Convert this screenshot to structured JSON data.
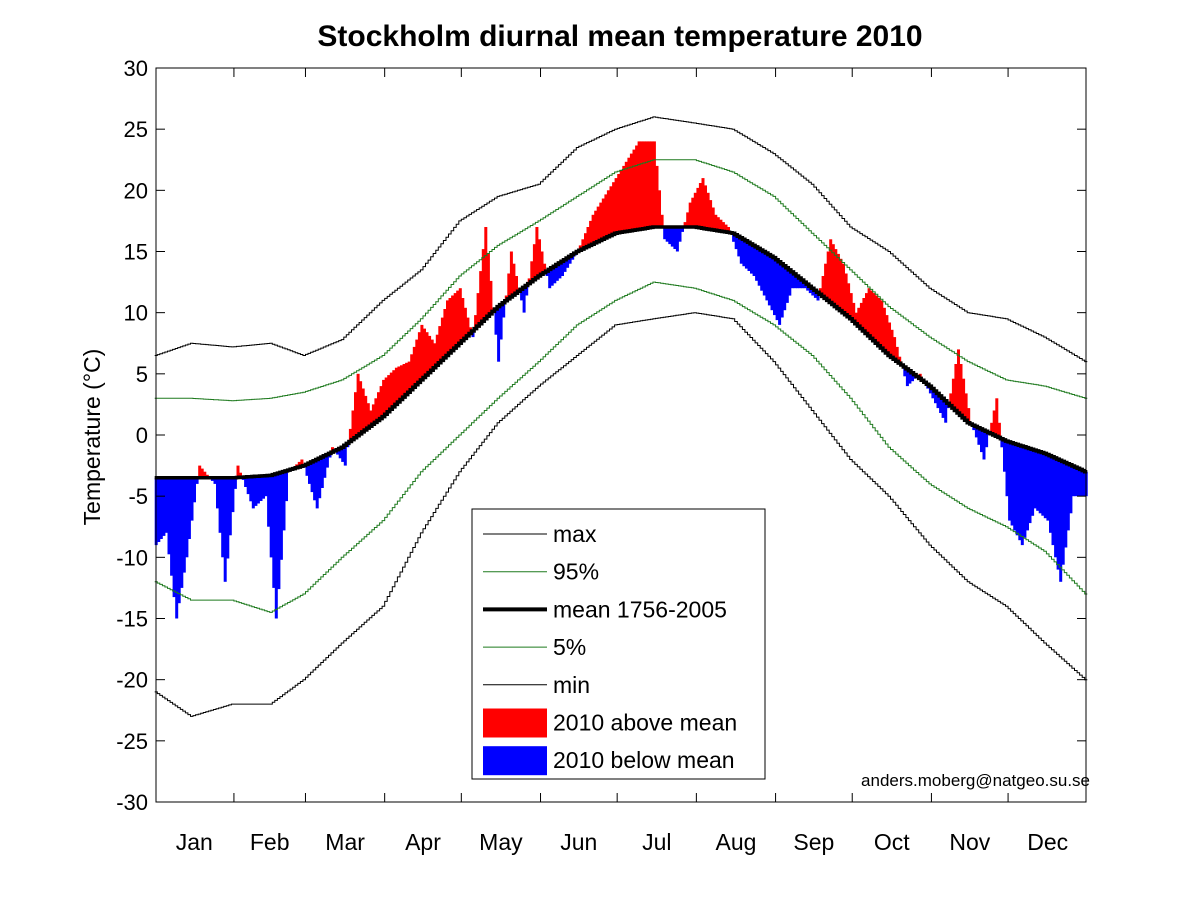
{
  "chart_data": {
    "type": "line",
    "title": "Stockholm diurnal mean temperature 2010",
    "xlabel": "",
    "ylabel": "Temperature (°C)",
    "xlim": [
      1,
      365
    ],
    "ylim": [
      -30,
      30
    ],
    "yticks": [
      30,
      25,
      20,
      15,
      10,
      5,
      0,
      -5,
      -10,
      -15,
      -20,
      -25,
      -30
    ],
    "months": [
      "Jan",
      "Feb",
      "Mar",
      "Apr",
      "May",
      "Jun",
      "Jul",
      "Aug",
      "Sep",
      "Oct",
      "Nov",
      "Dec"
    ],
    "month_days": [
      31,
      28,
      31,
      30,
      31,
      30,
      31,
      31,
      30,
      31,
      30,
      31
    ],
    "credit": "anders.moberg@natgeo.su.se",
    "legend_position": "bottom-center",
    "curves": {
      "max": {
        "day": [
          1,
          15,
          31,
          46,
          59,
          74,
          90,
          105,
          120,
          135,
          151,
          166,
          181,
          196,
          212,
          227,
          243,
          258,
          273,
          288,
          304,
          319,
          334,
          349,
          365
        ],
        "value": [
          6.5,
          7.5,
          7.2,
          7.5,
          6.5,
          7.8,
          11,
          13.5,
          17.5,
          19.5,
          20.5,
          23.5,
          25,
          26,
          25.5,
          25,
          23,
          20.5,
          17,
          15,
          12,
          10,
          9.5,
          8,
          6
        ]
      },
      "p95": {
        "day": [
          1,
          15,
          31,
          46,
          59,
          74,
          90,
          105,
          120,
          135,
          151,
          166,
          181,
          196,
          212,
          227,
          243,
          258,
          273,
          288,
          304,
          319,
          334,
          349,
          365
        ],
        "value": [
          3,
          3,
          2.8,
          3,
          3.5,
          4.5,
          6.5,
          9.5,
          13,
          15.5,
          17.5,
          19.5,
          21.5,
          22.5,
          22.5,
          21.5,
          19.5,
          16.5,
          13.5,
          10.5,
          8,
          6,
          4.5,
          4,
          3
        ]
      },
      "mean": {
        "day": [
          1,
          15,
          31,
          46,
          59,
          74,
          90,
          105,
          120,
          135,
          151,
          166,
          181,
          196,
          212,
          227,
          243,
          258,
          273,
          288,
          304,
          319,
          334,
          349,
          365
        ],
        "value": [
          -3.5,
          -3.5,
          -3.5,
          -3.3,
          -2.5,
          -1,
          1.5,
          4.5,
          7.5,
          10.5,
          13,
          15,
          16.5,
          17,
          17,
          16.5,
          14.5,
          12,
          9.5,
          6.5,
          4,
          1,
          -0.5,
          -1.5,
          -3
        ]
      },
      "p5": {
        "day": [
          1,
          15,
          31,
          46,
          59,
          74,
          90,
          105,
          120,
          135,
          151,
          166,
          181,
          196,
          212,
          227,
          243,
          258,
          273,
          288,
          304,
          319,
          334,
          349,
          365
        ],
        "value": [
          -12,
          -13.5,
          -13.5,
          -14.5,
          -13,
          -10,
          -7,
          -3,
          0,
          3,
          6,
          9,
          11,
          12.5,
          12,
          11,
          9,
          6.5,
          3,
          -1,
          -4,
          -6,
          -7.5,
          -9.5,
          -13
        ]
      },
      "min": {
        "day": [
          1,
          15,
          31,
          46,
          59,
          74,
          90,
          105,
          120,
          135,
          151,
          166,
          181,
          196,
          212,
          227,
          243,
          258,
          273,
          288,
          304,
          319,
          334,
          349,
          365
        ],
        "value": [
          -21,
          -23,
          -22,
          -22,
          -20,
          -17,
          -14,
          -8,
          -3,
          1,
          4,
          6.5,
          9,
          9.5,
          10,
          9.5,
          6,
          2,
          -2,
          -5,
          -9,
          -12,
          -14,
          -17,
          -20
        ]
      }
    },
    "observed_2010": {
      "day": [
        1,
        5,
        9,
        13,
        18,
        24,
        28,
        33,
        39,
        44,
        48,
        53,
        58,
        64,
        70,
        75,
        80,
        85,
        90,
        95,
        100,
        105,
        110,
        115,
        120,
        125,
        130,
        135,
        140,
        145,
        150,
        155,
        160,
        166,
        172,
        178,
        184,
        190,
        196,
        200,
        205,
        210,
        215,
        220,
        225,
        230,
        235,
        240,
        245,
        250,
        255,
        260,
        265,
        270,
        275,
        280,
        285,
        290,
        295,
        300,
        305,
        310,
        315,
        320,
        325,
        330,
        335,
        340,
        345,
        350,
        355,
        360,
        365
      ],
      "value": [
        -9,
        -8,
        -15,
        -10,
        -2.5,
        -4,
        -12,
        -2.5,
        -6,
        -5,
        -15,
        -3,
        -2,
        -6,
        -1,
        -2.5,
        5,
        2,
        4.5,
        5.5,
        6,
        9,
        7.5,
        11,
        12,
        8,
        17,
        6,
        15,
        10,
        17,
        12,
        13,
        15,
        18,
        20,
        22,
        24,
        24,
        16,
        15,
        19,
        21,
        18,
        17,
        14,
        13,
        11,
        9,
        12,
        12,
        11,
        16,
        14,
        10,
        12,
        11,
        8,
        4,
        5,
        3,
        1,
        7,
        1,
        -2,
        3,
        -7,
        -9,
        -6,
        -7,
        -12,
        -5,
        -5
      ]
    },
    "legend": [
      {
        "key": "max",
        "label": "max",
        "color": "#000000"
      },
      {
        "key": "p95",
        "label": "95%",
        "color": "#1e7a1e"
      },
      {
        "key": "mean",
        "label": "mean 1756-2005",
        "color": "#000000"
      },
      {
        "key": "p5",
        "label": "5%",
        "color": "#1e7a1e"
      },
      {
        "key": "min",
        "label": "min",
        "color": "#000000"
      },
      {
        "key": "above",
        "label": "2010 above mean",
        "color": "#ff0000"
      },
      {
        "key": "below",
        "label": "2010 below mean",
        "color": "#0000ff"
      }
    ]
  }
}
